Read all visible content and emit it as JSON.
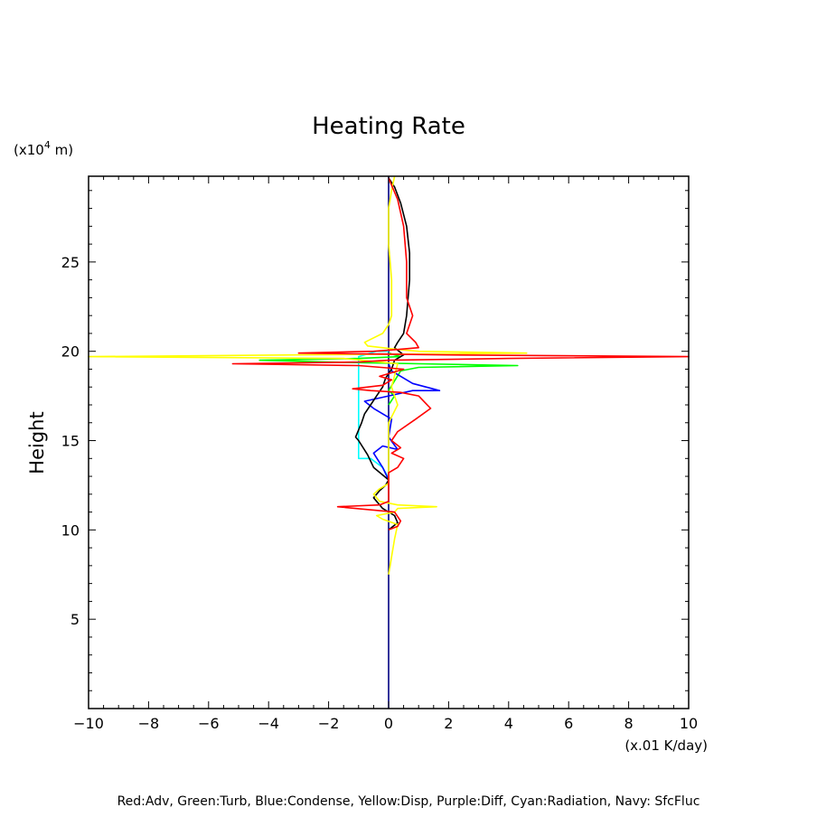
{
  "chart_data": {
    "type": "line",
    "title": "Heating Rate",
    "ylabel": "Height",
    "y_unit": "(x10",
    "y_unit_exp": "4",
    "y_unit_tail": " m)",
    "x_unit": "(x.01 K/day)",
    "legend_text": "Red:Adv, Green:Turb, Blue:Condense, Yellow:Disp, Purple:Diff, Cyan:Radiation, Navy: SfcFluc",
    "xlim": [
      -10,
      10
    ],
    "ylim": [
      0,
      29.8
    ],
    "x_ticks": [
      -10,
      -8,
      -6,
      -4,
      -2,
      0,
      2,
      4,
      6,
      8,
      10
    ],
    "x_tick_labels": [
      "−10",
      "−8",
      "−6",
      "−4",
      "−2",
      "0",
      "2",
      "4",
      "6",
      "8",
      "10"
    ],
    "y_ticks": [
      5,
      10,
      15,
      20,
      25
    ],
    "y_tick_labels": [
      "5",
      "10",
      "15",
      "20",
      "25"
    ],
    "grid": false,
    "series": [
      {
        "name": "Navy: SfcFluc",
        "color": "#000080",
        "points": [
          [
            0,
            0
          ],
          [
            0,
            29.8
          ]
        ]
      },
      {
        "name": "Cyan:Radiation",
        "color": "#00ffff",
        "points": [
          [
            0,
            12.9
          ],
          [
            -0.2,
            13.5
          ],
          [
            -0.6,
            14
          ],
          [
            -1.0,
            14
          ],
          [
            -1.0,
            16
          ],
          [
            -1.0,
            19.7
          ],
          [
            -0.4,
            20.0
          ],
          [
            0,
            20.0
          ]
        ]
      },
      {
        "name": "Green:Turb",
        "color": "#00ff00",
        "points": [
          [
            0,
            17.0
          ],
          [
            0.2,
            17.5
          ],
          [
            0,
            17.8
          ],
          [
            0.4,
            18.9
          ],
          [
            1.0,
            19.1
          ],
          [
            4.3,
            19.2
          ],
          [
            1.0,
            19.3
          ],
          [
            -2.0,
            19.4
          ],
          [
            -4.3,
            19.5
          ],
          [
            -1.0,
            19.6
          ],
          [
            0.4,
            19.7
          ],
          [
            0,
            19.9
          ]
        ]
      },
      {
        "name": "Blue:Condense",
        "color": "#0000ff",
        "points": [
          [
            0,
            12.8
          ],
          [
            -0.2,
            13.5
          ],
          [
            -0.5,
            14.3
          ],
          [
            -0.2,
            14.7
          ],
          [
            0.3,
            14.5
          ],
          [
            0,
            15.2
          ],
          [
            0.1,
            16.2
          ],
          [
            -0.5,
            16.8
          ],
          [
            -0.8,
            17.2
          ],
          [
            0,
            17.5
          ],
          [
            0.8,
            17.8
          ],
          [
            1.7,
            17.8
          ],
          [
            0.8,
            18.2
          ],
          [
            0.1,
            18.9
          ],
          [
            0,
            19.3
          ]
        ]
      },
      {
        "name": "Black",
        "color": "#000000",
        "points": [
          [
            0,
            10.0
          ],
          [
            0.3,
            10.4
          ],
          [
            0.2,
            10.8
          ],
          [
            -0.2,
            11.2
          ],
          [
            -0.5,
            11.8
          ],
          [
            -0.3,
            12.2
          ],
          [
            -0.1,
            12.5
          ],
          [
            0,
            12.8
          ],
          [
            -0.5,
            13.5
          ],
          [
            -0.7,
            14.2
          ],
          [
            -1.0,
            15.0
          ],
          [
            -1.1,
            15.2
          ],
          [
            -1.0,
            15.6
          ],
          [
            -0.9,
            16.0
          ],
          [
            -0.8,
            16.5
          ],
          [
            -0.6,
            17.0
          ],
          [
            -0.4,
            17.5
          ],
          [
            -0.2,
            18.0
          ],
          [
            -0.1,
            18.5
          ],
          [
            0.1,
            19.0
          ],
          [
            0.2,
            19.5
          ],
          [
            0.5,
            19.8
          ],
          [
            0.2,
            20.2
          ],
          [
            0.3,
            20.5
          ],
          [
            0.5,
            21.0
          ],
          [
            0.6,
            22.0
          ],
          [
            0.7,
            24.0
          ],
          [
            0.7,
            25.5
          ],
          [
            0.6,
            27.0
          ],
          [
            0.4,
            28.3
          ],
          [
            0.2,
            29.2
          ],
          [
            0,
            29.7
          ]
        ]
      },
      {
        "name": "Yellow:Disp",
        "color": "#ffff00",
        "points": [
          [
            0,
            7.5
          ],
          [
            0.1,
            8.5
          ],
          [
            0.2,
            9.5
          ],
          [
            0.3,
            10.3
          ],
          [
            -0.2,
            10.6
          ],
          [
            -0.4,
            10.8
          ],
          [
            0.2,
            11.0
          ],
          [
            0.3,
            11.2
          ],
          [
            1.6,
            11.3
          ],
          [
            0.3,
            11.4
          ],
          [
            -0.3,
            11.6
          ],
          [
            -0.5,
            12.0
          ],
          [
            -0.3,
            12.3
          ],
          [
            0,
            12.6
          ],
          [
            0,
            16.0
          ],
          [
            0.3,
            17.0
          ],
          [
            0.2,
            17.5
          ],
          [
            0.1,
            18.0
          ],
          [
            0.3,
            19.3
          ],
          [
            -1.5,
            19.6
          ],
          [
            -10.0,
            19.7
          ],
          [
            -3.0,
            19.8
          ],
          [
            1.0,
            19.85
          ],
          [
            4.6,
            19.9
          ],
          [
            1.0,
            20.0
          ],
          [
            0.3,
            20.1
          ],
          [
            -0.7,
            20.3
          ],
          [
            -0.8,
            20.5
          ],
          [
            -0.2,
            21.0
          ],
          [
            0,
            21.5
          ],
          [
            0.1,
            22.0
          ],
          [
            0.1,
            24.0
          ],
          [
            0,
            26.0
          ],
          [
            0,
            28.0
          ],
          [
            0.1,
            29.0
          ],
          [
            0.2,
            29.8
          ]
        ]
      },
      {
        "name": "Red:Adv",
        "color": "#ff0000",
        "points": [
          [
            0,
            10.0
          ],
          [
            0.3,
            10.2
          ],
          [
            0.4,
            10.5
          ],
          [
            0.2,
            11.0
          ],
          [
            -1.7,
            11.3
          ],
          [
            -0.3,
            11.4
          ],
          [
            0,
            11.6
          ],
          [
            0,
            13.2
          ],
          [
            0.3,
            13.5
          ],
          [
            0.5,
            14.0
          ],
          [
            0.1,
            14.3
          ],
          [
            0.4,
            14.6
          ],
          [
            0.1,
            15.0
          ],
          [
            0.3,
            15.5
          ],
          [
            0.9,
            16.2
          ],
          [
            1.4,
            16.8
          ],
          [
            1.0,
            17.5
          ],
          [
            0.4,
            17.7
          ],
          [
            -0.6,
            17.8
          ],
          [
            -1.2,
            17.9
          ],
          [
            -0.2,
            18.1
          ],
          [
            0.1,
            18.4
          ],
          [
            -0.3,
            18.6
          ],
          [
            0.5,
            19.0
          ],
          [
            -1.0,
            19.2
          ],
          [
            -5.2,
            19.3
          ],
          [
            -1.0,
            19.4
          ],
          [
            0,
            19.5
          ],
          [
            4.0,
            19.6
          ],
          [
            10.0,
            19.7
          ],
          [
            2.0,
            19.8
          ],
          [
            -3.0,
            19.9
          ],
          [
            -0.5,
            20.0
          ],
          [
            0.3,
            20.1
          ],
          [
            1.0,
            20.2
          ],
          [
            0.9,
            20.5
          ],
          [
            0.6,
            21.0
          ],
          [
            0.8,
            22.0
          ],
          [
            0.6,
            23.0
          ],
          [
            0.6,
            25.0
          ],
          [
            0.5,
            27.0
          ],
          [
            0.3,
            28.5
          ],
          [
            0.1,
            29.3
          ],
          [
            0,
            29.7
          ]
        ]
      }
    ]
  }
}
